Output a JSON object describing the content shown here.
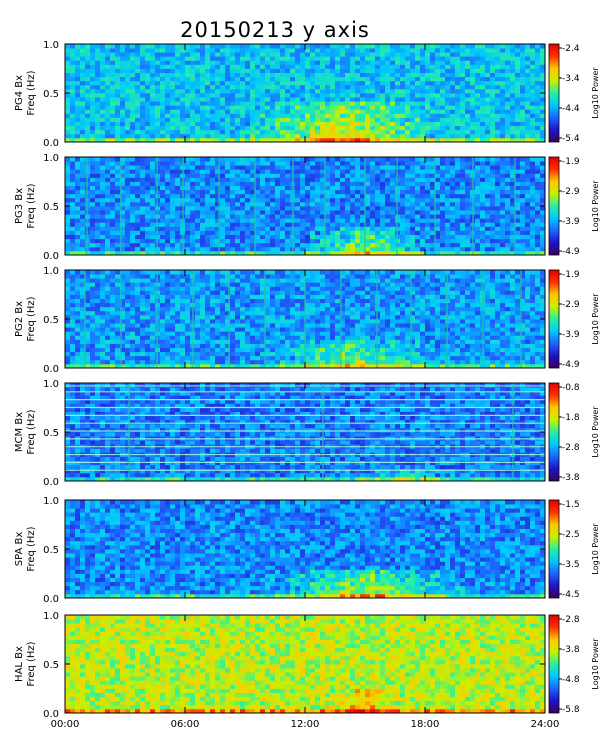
{
  "chart_data": {
    "type": "heatmap",
    "title": "20150213 y axis",
    "xlabel": "",
    "xlim": [
      0,
      24
    ],
    "x_ticks": [
      0,
      6,
      12,
      18,
      24
    ],
    "x_tick_labels": [
      "00:00",
      "06:00",
      "12:00",
      "18:00",
      "24:00"
    ],
    "ylim": [
      0,
      1
    ],
    "y_ticks": [
      0,
      0.5,
      1
    ],
    "y_tick_labels": [
      "0.0",
      "0.5",
      "1.0"
    ],
    "y_axis_label": "Freq (Hz)",
    "colorbar_label": "Log10 Power",
    "colormap": [
      "#3a005a",
      "#1e14c8",
      "#1e64ff",
      "#00c8ff",
      "#28f0a0",
      "#c8f000",
      "#ffc800",
      "#ff3000",
      "#e00000"
    ],
    "panels": [
      {
        "station": "PG4 Bx",
        "clim": [
          -5.4,
          -2.4
        ],
        "cbar_ticks": [
          "-2.4",
          "-3.4",
          "-4.4",
          "-5.4"
        ],
        "base_level": 0.38,
        "band": {
          "start": 9,
          "end": 19,
          "freq_max": 0.4,
          "level": 0.72
        },
        "vertical_lines": [],
        "horizontal_lines": []
      },
      {
        "station": "PG3 Bx",
        "clim": [
          -4.9,
          -1.9
        ],
        "cbar_ticks": [
          "-1.9",
          "-2.9",
          "-3.9",
          "-4.9"
        ],
        "base_level": 0.3,
        "band": {
          "start": 12,
          "end": 18,
          "freq_max": 0.3,
          "level": 0.62
        },
        "vertical_lines": [
          1.1,
          2.8,
          4.6,
          5.9,
          7.7,
          9.5,
          11.4,
          13.0,
          15.0,
          16.6,
          18.5,
          20.4,
          22.5
        ],
        "horizontal_lines": []
      },
      {
        "station": "PG2 Bx",
        "clim": [
          -4.9,
          -1.9
        ],
        "cbar_ticks": [
          "-1.9",
          "-2.9",
          "-3.9",
          "-4.9"
        ],
        "base_level": 0.32,
        "band": {
          "start": 10,
          "end": 19,
          "freq_max": 0.3,
          "level": 0.6
        },
        "vertical_lines": [
          1.0,
          2.8,
          4.6,
          6.4,
          8.2,
          10.0,
          12.0,
          13.8,
          15.6,
          17.3,
          19.1,
          20.9,
          22.8
        ],
        "horizontal_lines": []
      },
      {
        "station": "MCM Bx",
        "clim": [
          -3.8,
          -0.8
        ],
        "cbar_ticks": [
          "-0.8",
          "-1.8",
          "-2.8",
          "-3.8"
        ],
        "base_level": 0.28,
        "band": {
          "start": 14,
          "end": 20,
          "freq_max": 0.15,
          "level": 0.45
        },
        "vertical_lines": [
          3.2,
          12.9,
          22.4
        ],
        "horizontal_lines": [
          0.11,
          0.19,
          0.27,
          0.35,
          0.43,
          0.51,
          0.59,
          0.67,
          0.75,
          0.83,
          0.91,
          0.97
        ]
      },
      {
        "station": "SPA Bx",
        "clim": [
          -4.5,
          -1.5
        ],
        "cbar_ticks": [
          "-1.5",
          "-2.5",
          "-3.5",
          "-4.5"
        ],
        "base_level": 0.3,
        "band": {
          "start": 10,
          "end": 20,
          "freq_max": 0.3,
          "level": 0.66
        },
        "vertical_lines": [],
        "horizontal_lines": []
      },
      {
        "station": "HAL Bx",
        "clim": [
          -5.8,
          -2.8
        ],
        "cbar_ticks": [
          "-2.8",
          "-3.8",
          "-4.8",
          "-5.8"
        ],
        "base_level": 0.62,
        "band": {
          "start": 13,
          "end": 17,
          "freq_max": 0.25,
          "level": 0.8
        },
        "vertical_lines": [],
        "horizontal_lines": []
      }
    ]
  }
}
